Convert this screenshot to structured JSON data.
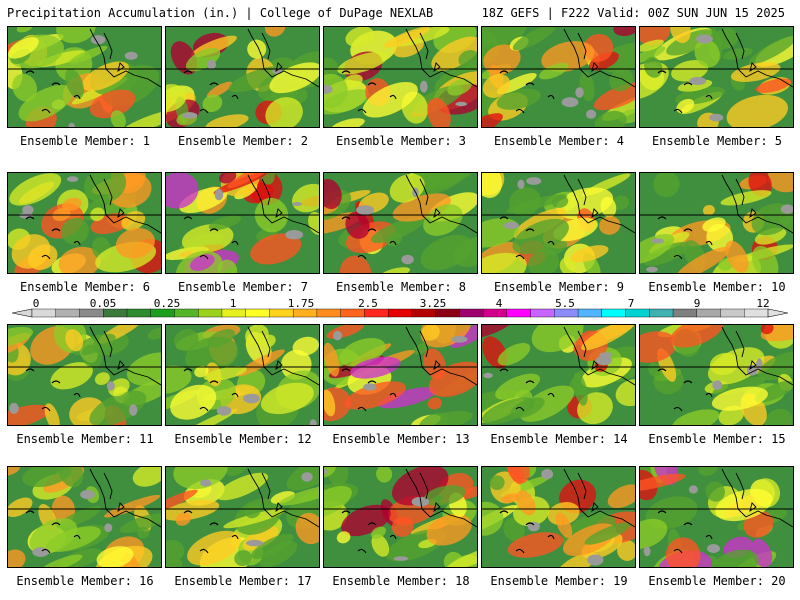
{
  "header": {
    "left": "Precipitation Accumulation (in.) | College of DuPage NEXLAB",
    "right": "18Z GEFS | F222 Valid: 00Z SUN JUN 15 2025"
  },
  "panels": [
    {
      "label": "Ensemble Member: 1",
      "intensity": 0.55
    },
    {
      "label": "Ensemble Member: 2",
      "intensity": 0.8
    },
    {
      "label": "Ensemble Member: 3",
      "intensity": 0.75
    },
    {
      "label": "Ensemble Member: 4",
      "intensity": 0.7
    },
    {
      "label": "Ensemble Member: 5",
      "intensity": 0.6
    },
    {
      "label": "Ensemble Member: 6",
      "intensity": 0.6
    },
    {
      "label": "Ensemble Member: 7",
      "intensity": 0.85
    },
    {
      "label": "Ensemble Member: 8",
      "intensity": 0.8
    },
    {
      "label": "Ensemble Member: 9",
      "intensity": 0.55
    },
    {
      "label": "Ensemble Member: 10",
      "intensity": 0.7
    },
    {
      "label": "Ensemble Member: 11",
      "intensity": 0.6
    },
    {
      "label": "Ensemble Member: 12",
      "intensity": 0.45
    },
    {
      "label": "Ensemble Member: 13",
      "intensity": 0.8
    },
    {
      "label": "Ensemble Member: 14",
      "intensity": 0.8
    },
    {
      "label": "Ensemble Member: 15",
      "intensity": 0.65
    },
    {
      "label": "Ensemble Member: 16",
      "intensity": 0.5
    },
    {
      "label": "Ensemble Member: 17",
      "intensity": 0.55
    },
    {
      "label": "Ensemble Member: 18",
      "intensity": 0.75
    },
    {
      "label": "Ensemble Member: 19",
      "intensity": 0.6
    },
    {
      "label": "Ensemble Member: 20",
      "intensity": 0.9
    }
  ],
  "colorbar": {
    "labels": [
      "0",
      "0.05",
      "0.25",
      "1",
      "1.75",
      "2.5",
      "3.25",
      "4",
      "5.5",
      "7",
      "9",
      "12"
    ],
    "colors": [
      "#d8d8d8",
      "#b0b0b0",
      "#8a8a8a",
      "#3c7a3c",
      "#2e8b2e",
      "#1e9e1e",
      "#55b52a",
      "#9bd21e",
      "#e6f01e",
      "#ffff28",
      "#ffd21e",
      "#ffb01e",
      "#ff8c1e",
      "#ff641e",
      "#ff281e",
      "#e60000",
      "#b40000",
      "#8c0014",
      "#a0006e",
      "#d2008c",
      "#ff00ff",
      "#c864ff",
      "#8c8cff",
      "#50b4ff",
      "#00ffff",
      "#00d2d2",
      "#40b0b0",
      "#808080",
      "#a8a8a8",
      "#c8c8c8",
      "#e0e0e0"
    ]
  }
}
